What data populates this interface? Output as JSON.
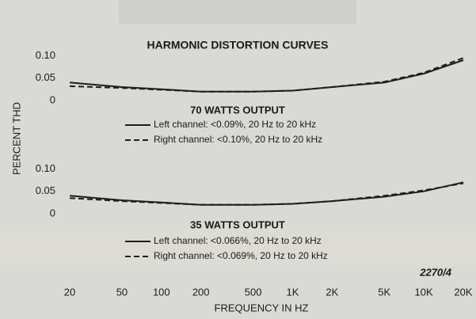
{
  "chart_data": [
    {
      "type": "line",
      "title": "HARMONIC DISTORTION CURVES",
      "ylabel": "PERCENT THD",
      "subtitle": "70 WATTS OUTPUT",
      "x": [
        20,
        50,
        100,
        200,
        500,
        1000,
        2000,
        5000,
        10000,
        20000
      ],
      "xlim": [
        20,
        20000
      ],
      "xscale": "log",
      "ylim": [
        0,
        0.15
      ],
      "yticks": [
        0,
        0.05,
        {
          "value": 0.1,
          "label": "0.10"
        }
      ],
      "series": [
        {
          "name": "Left channel: <0.09%, 20 Hz to 20 kHz",
          "color": "#1e1e1e",
          "style": "solid",
          "values": [
            0.04,
            0.03,
            0.025,
            0.02,
            0.02,
            0.022,
            0.03,
            0.04,
            0.06,
            0.09
          ]
        },
        {
          "name": "Right channel: <0.10%, 20 Hz to 20 kHz",
          "color": "#1e1e1e",
          "style": "dashed",
          "values": [
            0.032,
            0.028,
            0.024,
            0.02,
            0.02,
            0.022,
            0.03,
            0.042,
            0.062,
            0.095
          ]
        }
      ]
    },
    {
      "type": "line",
      "subtitle": "35 WATTS OUTPUT",
      "xlabel": "FREQUENCY IN HZ",
      "annotation": "2270/4",
      "x": [
        20,
        50,
        100,
        200,
        500,
        1000,
        2000,
        5000,
        10000,
        20000
      ],
      "xlim": [
        20,
        20000
      ],
      "xscale": "log",
      "xticks": [
        20,
        50,
        100,
        200,
        500,
        {
          "value": 1000,
          "label": "1K"
        },
        {
          "value": 2000,
          "label": "2K"
        },
        {
          "value": 5000,
          "label": "5K"
        },
        {
          "value": 10000,
          "label": "10K"
        },
        {
          "value": 20000,
          "label": "20K"
        }
      ],
      "ylim": [
        0,
        0.15
      ],
      "yticks": [
        0,
        0.05,
        {
          "value": 0.1,
          "label": "0.10"
        }
      ],
      "series": [
        {
          "name": "Left channel: <0.066%, 20 Hz to 20 kHz",
          "color": "#1e1e1e",
          "style": "solid",
          "values": [
            0.04,
            0.03,
            0.025,
            0.02,
            0.02,
            0.022,
            0.028,
            0.038,
            0.05,
            0.07
          ]
        },
        {
          "name": "Right channel: <0.069%, 20 Hz to 20 kHz",
          "color": "#1e1e1e",
          "style": "dashed",
          "values": [
            0.035,
            0.028,
            0.024,
            0.02,
            0.02,
            0.022,
            0.028,
            0.04,
            0.052,
            0.068
          ]
        }
      ]
    }
  ]
}
